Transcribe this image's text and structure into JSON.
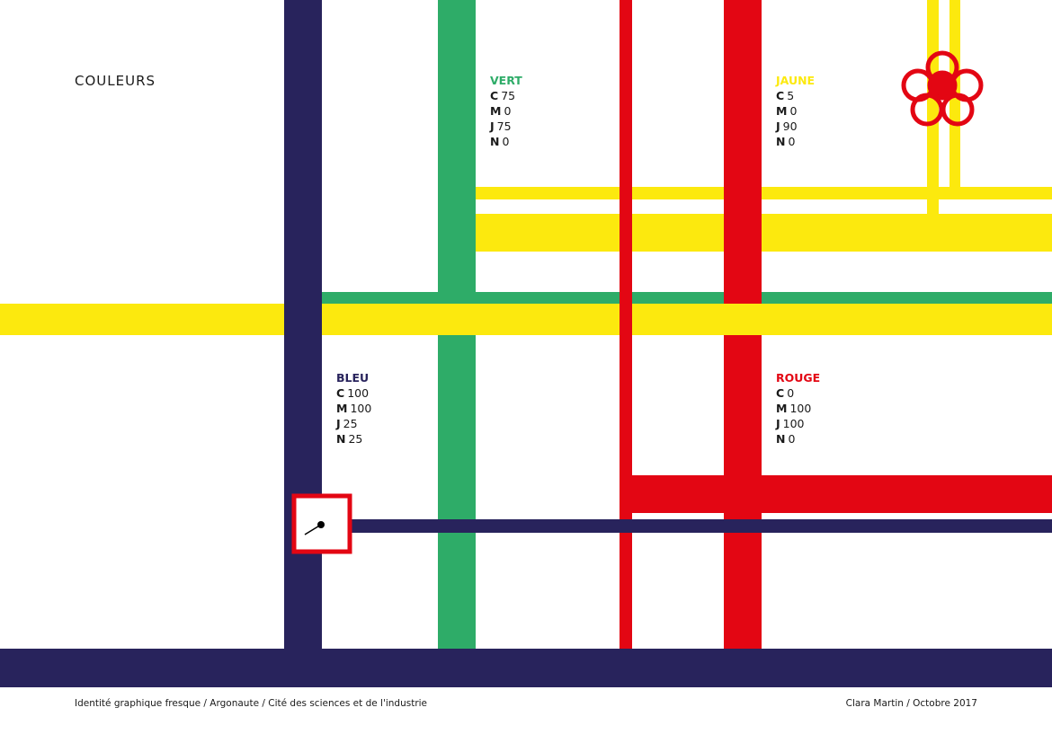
{
  "title": "COULEURS",
  "colors": [
    {
      "name": "VERT",
      "values": [
        {
          "key": "C",
          "value": 75
        },
        {
          "key": "M",
          "value": 0
        },
        {
          "key": "J",
          "value": 75
        },
        {
          "key": "N",
          "value": 0
        }
      ]
    },
    {
      "name": "JAUNE",
      "values": [
        {
          "key": "C",
          "value": 5
        },
        {
          "key": "M",
          "value": 0
        },
        {
          "key": "J",
          "value": 90
        },
        {
          "key": "N",
          "value": 0
        }
      ]
    },
    {
      "name": "BLEU",
      "values": [
        {
          "key": "C",
          "value": 100
        },
        {
          "key": "M",
          "value": 100
        },
        {
          "key": "J",
          "value": 25
        },
        {
          "key": "N",
          "value": 25
        }
      ]
    },
    {
      "name": "ROUGE",
      "values": [
        {
          "key": "C",
          "value": 0
        },
        {
          "key": "M",
          "value": 100
        },
        {
          "key": "J",
          "value": 100
        },
        {
          "key": "N",
          "value": 0
        }
      ]
    }
  ],
  "footer": {
    "left": "Identité graphique fresque / Argonaute / Cité des sciences et de l'industrie",
    "right": "Clara Martin / Octobre 2017"
  }
}
